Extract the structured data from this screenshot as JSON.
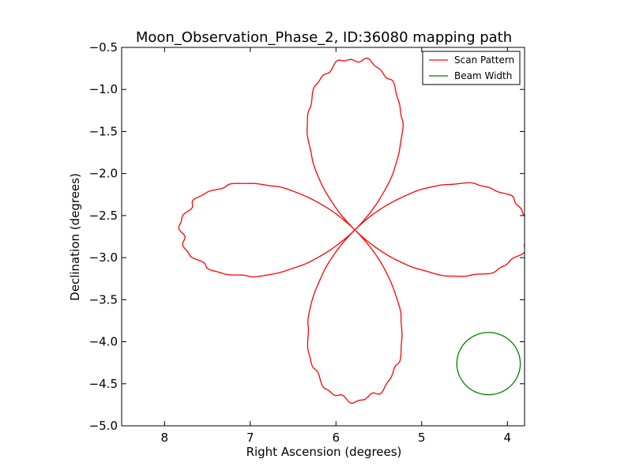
{
  "chart_data": {
    "type": "line",
    "title": "Moon_Observation_Phase_2, ID:36080 mapping path",
    "xlabel": "Right Ascension (degrees)",
    "ylabel": "Declination (degrees)",
    "xlim": [
      8.5,
      3.8
    ],
    "ylim": [
      -5.0,
      -0.5
    ],
    "x_ticks": [
      "8",
      "7",
      "6",
      "5",
      "4"
    ],
    "x_tick_values": [
      8,
      7,
      6,
      5,
      4
    ],
    "y_ticks": [
      "−0.5",
      "−1.0",
      "−1.5",
      "−2.0",
      "−2.5",
      "−3.0",
      "−3.5",
      "−4.0",
      "−4.5",
      "−5.0"
    ],
    "y_tick_values": [
      -0.5,
      -1.0,
      -1.5,
      -2.0,
      -2.5,
      -3.0,
      -3.5,
      -4.0,
      -4.5,
      -5.0
    ],
    "grid": false,
    "legend_position": "top-right",
    "series": [
      {
        "name": "Scan Pattern",
        "color": "#ff0000",
        "shape": "four-petal rose",
        "center": [
          5.78,
          -2.67
        ],
        "radius": 2.03
      },
      {
        "name": "Beam Width",
        "color": "#008000",
        "shape": "circle",
        "center": [
          4.22,
          -4.26
        ],
        "radius": 0.37
      }
    ]
  }
}
